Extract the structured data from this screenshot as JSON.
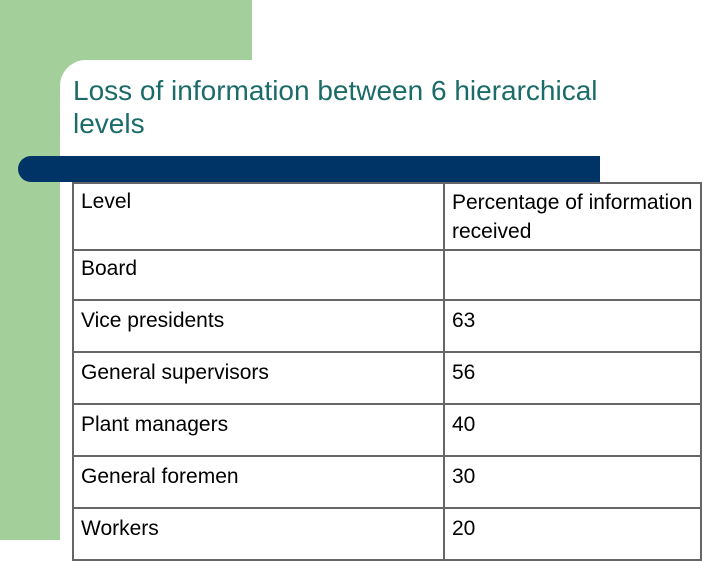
{
  "slide": {
    "title": "Loss of information between 6 hierarchical levels"
  },
  "table": {
    "headers": [
      "Level",
      "Percentage of information received"
    ],
    "rows": [
      {
        "level": "Board",
        "percentage": ""
      },
      {
        "level": "Vice presidents",
        "percentage": "63"
      },
      {
        "level": "General supervisors",
        "percentage": "56"
      },
      {
        "level": "Plant managers",
        "percentage": "40"
      },
      {
        "level": "General foremen",
        "percentage": "30"
      },
      {
        "level": "Workers",
        "percentage": "20"
      }
    ]
  },
  "colors": {
    "accent_green": "#a2cf9a",
    "title_teal": "#1b6b68",
    "bar_navy": "#003366"
  }
}
